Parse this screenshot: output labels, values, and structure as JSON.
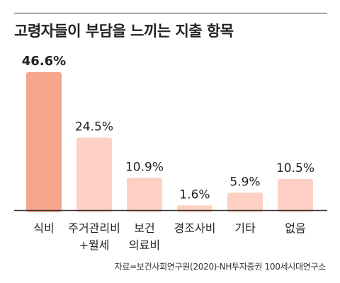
{
  "chart_title": "고령자들이 부담을 느끼는 지출 항목",
  "source": "자료=보건사회연구원(2020)·NH투자증권 100세시대연구소",
  "colors": {
    "highlight_bar": "#F7A58C",
    "bar": "#FDD0C3",
    "baseline": "#333333",
    "text": "#222222"
  },
  "chart_data": {
    "type": "bar",
    "title": "고령자들이 부담을 느끼는 지출 항목",
    "categories": [
      [
        "식비"
      ],
      [
        "주거관리비",
        "+월세"
      ],
      [
        "보건",
        "의료비"
      ],
      [
        "경조사비"
      ],
      [
        "기타"
      ],
      [
        "없음"
      ]
    ],
    "values": [
      46.6,
      24.5,
      10.9,
      1.6,
      5.9,
      10.5
    ],
    "value_labels": [
      "46.6%",
      "24.5%",
      "10.9%",
      "1.6%",
      "5.9%",
      "10.5%"
    ],
    "highlight_index": 0,
    "ylim": [
      0,
      46.6
    ],
    "grid": false,
    "legend": "none"
  }
}
